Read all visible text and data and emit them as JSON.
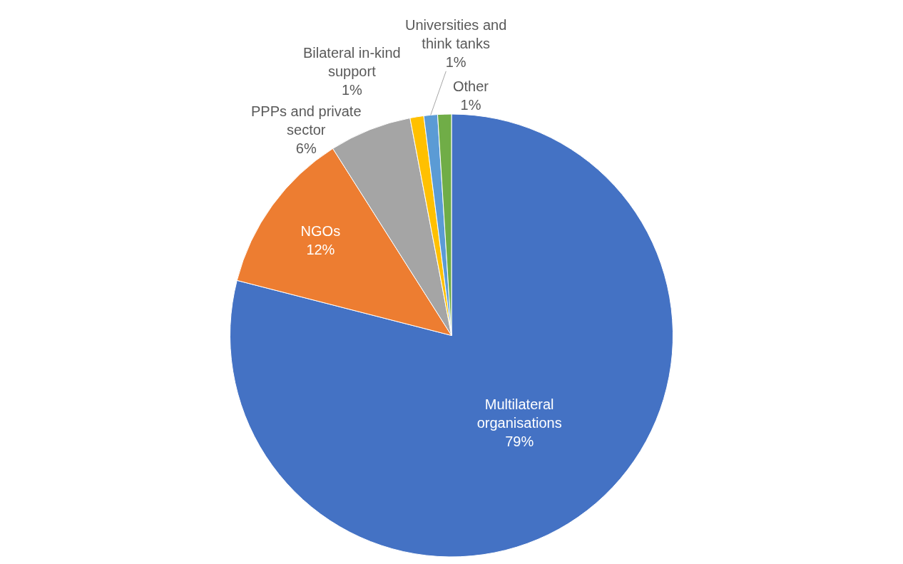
{
  "chart_data": {
    "type": "pie",
    "categories": [
      "Multilateral organisations",
      "NGOs",
      "PPPs and private sector",
      "Bilateral in-kind support",
      "Universities and think tanks",
      "Other"
    ],
    "values": [
      79,
      12,
      6,
      1,
      1,
      1
    ],
    "value_labels": [
      "79%",
      "12%",
      "6%",
      "1%",
      "1%",
      "1%"
    ],
    "colors": [
      "#4472c4",
      "#ed7d31",
      "#a5a5a5",
      "#ffc000",
      "#5b9bd5",
      "#70ad47"
    ],
    "legend": false
  }
}
